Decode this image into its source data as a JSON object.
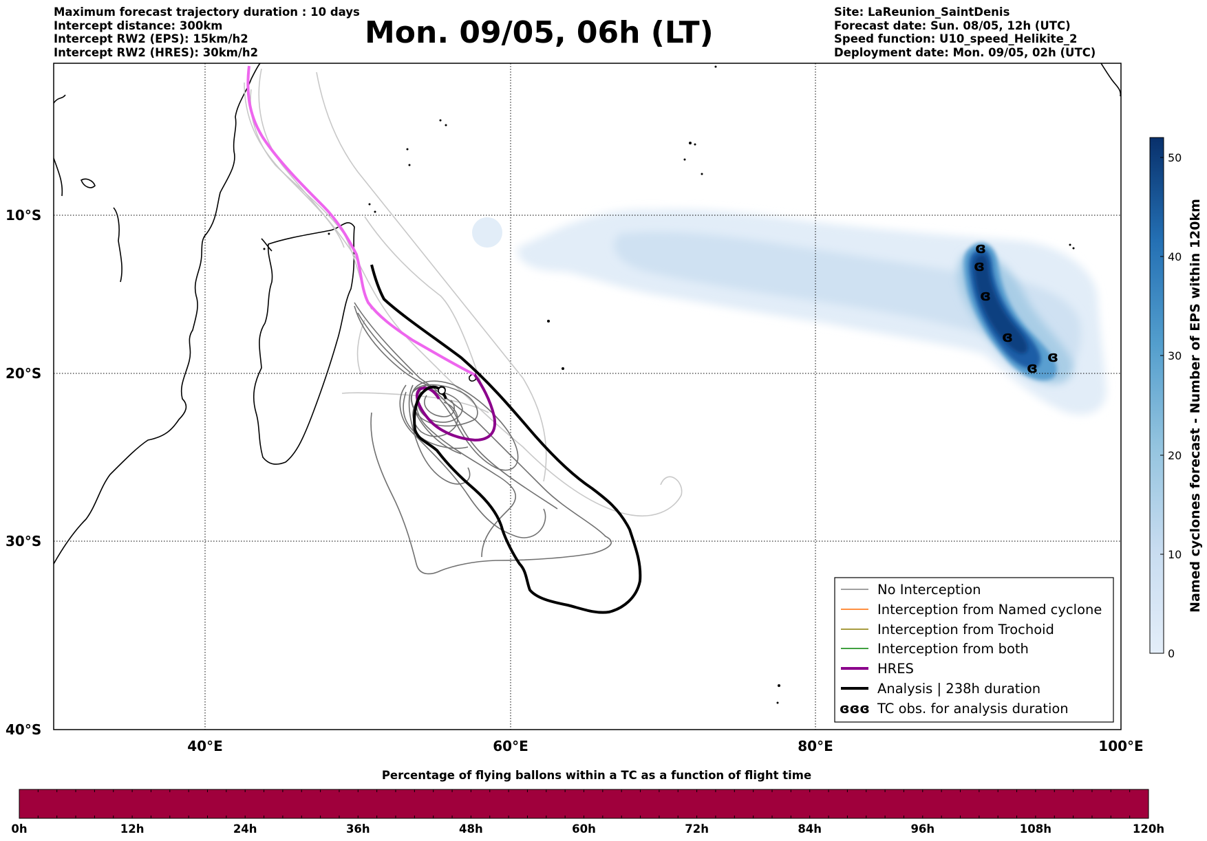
{
  "header": {
    "left_lines": [
      "Maximum forecast trajectory duration : 10 days",
      "Intercept distance: 300km",
      "Intercept RW2 (EPS):  15km/h2",
      "Intercept RW2 (HRES): 30km/h2"
    ],
    "title": "Mon. 09/05, 06h (LT)",
    "right_lines": [
      "Site: LaReunion_SaintDenis",
      "Forecast date: Sun. 08/05, 12h (UTC)",
      "Speed function: U10_speed_Helikite_2",
      "Deployment date: Mon. 09/05, 02h (UTC)"
    ]
  },
  "map": {
    "lat_labels": [
      "10°S",
      "20°S",
      "30°S",
      "40°S"
    ],
    "lon_labels": [
      "40°E",
      "60°E",
      "80°E",
      "100°E"
    ],
    "colors": {
      "no_interception": "#808080",
      "named_cyclone": "#ff6a00",
      "trochoid": "#8a7a00",
      "both": "#008000",
      "hres": "#8b008b",
      "hres_north": "#ee66ee",
      "analysis": "#000000"
    }
  },
  "legend": {
    "items": [
      {
        "label": "No Interception",
        "color": "#808080"
      },
      {
        "label": "Interception from Named cyclone",
        "color": "#ff6a00"
      },
      {
        "label": "Interception from Trochoid",
        "color": "#8a7a00"
      },
      {
        "label": "Interception from both",
        "color": "#008000"
      },
      {
        "label": "HRES",
        "color": "#8b008b"
      },
      {
        "label": "Analysis | 238h duration",
        "color": "#000000"
      },
      {
        "label": "TC obs. for analysis duration",
        "symbol": "ɞɞɞ"
      }
    ]
  },
  "colorbar": {
    "label": "Named cyclones forecast - Number of EPS within 120km",
    "ticks": [
      "0",
      "10",
      "20",
      "30",
      "40",
      "50"
    ],
    "range": [
      0,
      52
    ],
    "colors": [
      "#e4eef9",
      "#08306b"
    ]
  },
  "bottom_bar": {
    "title": "Percentage of flying ballons within a TC as a function of flight time",
    "ticks": [
      "0h",
      "12h",
      "24h",
      "36h",
      "48h",
      "60h",
      "72h",
      "84h",
      "96h",
      "108h",
      "120h"
    ],
    "fill_color": "#a0003c",
    "fill_fraction": 1.0
  }
}
